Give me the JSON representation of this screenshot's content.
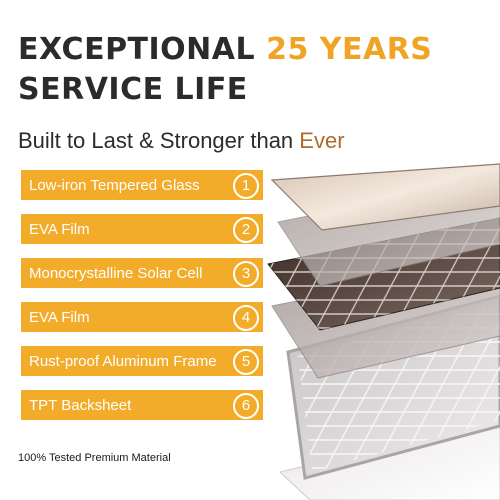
{
  "headline": {
    "line1_part1": "EXCEPTIONAL",
    "line1_part2": "25 YEARS",
    "line2": "SERVICE LIFE"
  },
  "subtitle": {
    "main": "Built to Last & Stronger than",
    "accent": "Ever"
  },
  "layers": [
    {
      "label": "Low-iron Tempered Glass",
      "number": "1"
    },
    {
      "label": "EVA Film",
      "number": "2"
    },
    {
      "label": "Monocrystalline Solar Cell",
      "number": "3"
    },
    {
      "label": "EVA Film",
      "number": "4"
    },
    {
      "label": "Rust-proof Aluminum Frame",
      "number": "5"
    },
    {
      "label": "TPT Backsheet",
      "number": "6"
    }
  ],
  "footer": {
    "text": "100% Tested Premium Material"
  },
  "colors": {
    "accent": "#f0a426",
    "layer_box": "#f3ac2a",
    "headline_dark": "#2b2b2b"
  },
  "icons": {
    "panel_illustration": "solar-panel-exploded-layers-illustration"
  }
}
